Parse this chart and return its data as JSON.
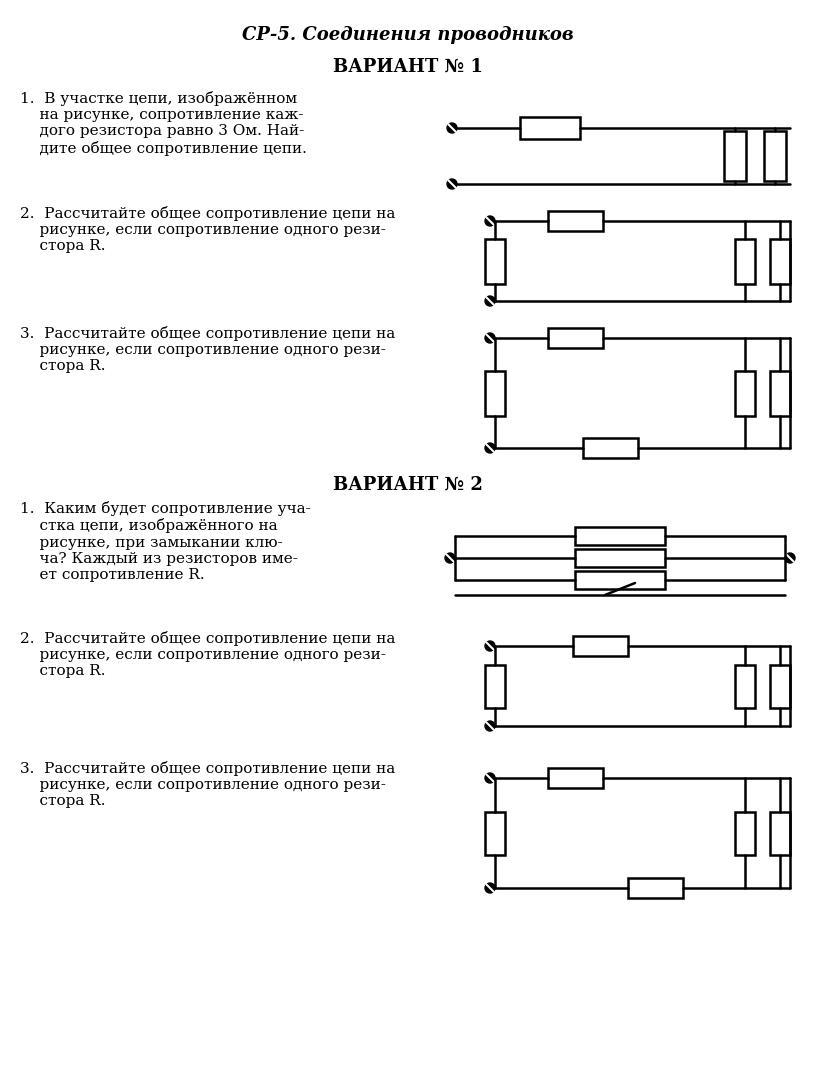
{
  "title": "СР-5. Соединения проводников",
  "variant1": "ВАРИАНТ № 1",
  "variant2": "ВАРИАНТ № 2",
  "bg_color": "#ffffff",
  "text_color": "#000000",
  "questions_v1": [
    "1.  В участке цепи, изображённом\n     на рисунке, сопротивление каж-\n     дого резистора равно 3 Ом. Най-\n     дите общее сопротивление цепи.",
    "2.  Рассчитайте общее сопротивление цепи на\n     рисунке, если сопротивление одного рези-\n     стора R.",
    "3.  Рассчитайте общее сопротивление цепи на\n     рисунке, если сопротивление одного рези-\n     стора R."
  ],
  "questions_v2": [
    "1.  Каким будет сопротивление уча-\n     стка цепи, изображённого на\n     рисунке, при замыкании клю-\n     ча? Каждый из резисторов име-\n     ет сопротивление R.",
    "2.  Рассчитайте общее сопротивление цепи на\n     рисунке, если сопротивление одного рези-\n     стора R.",
    "3.  Рассчитайте общее сопротивление цепи на\n     рисунке, если сопротивление одного рези-\n     стора R."
  ]
}
